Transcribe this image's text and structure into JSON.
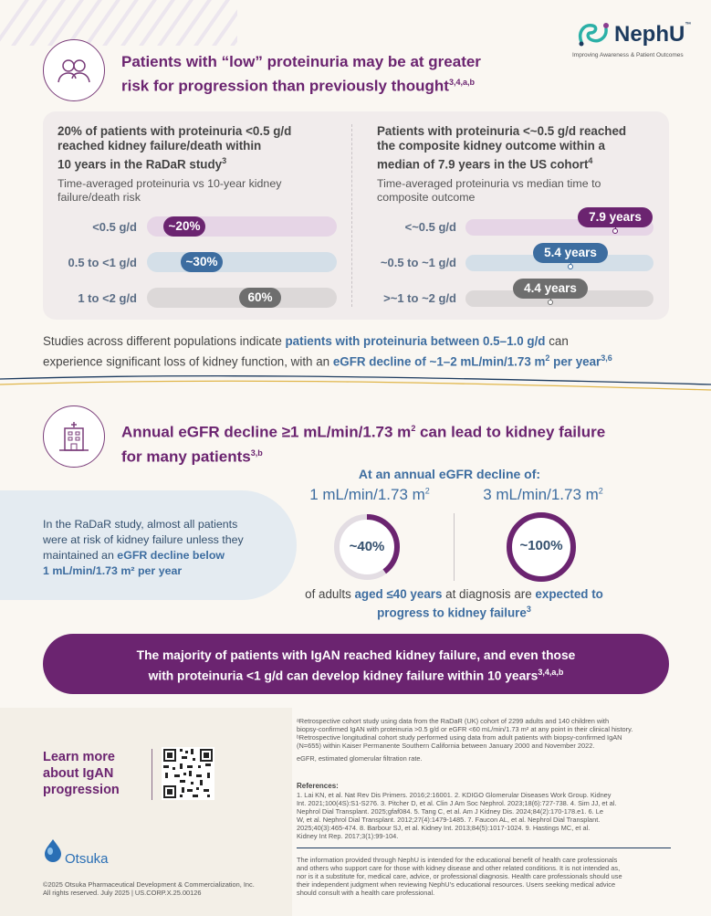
{
  "brand": {
    "name": "NephU",
    "tm": "™",
    "tagline": "Improving Awareness & Patient Outcomes",
    "colors": {
      "purple": "#6b2470",
      "blue": "#3d6da0",
      "navy": "#1c3a5e",
      "teal": "#2bb0a7"
    }
  },
  "section1": {
    "title_line1": "Patients with “low” proteinuria may be at greater",
    "title_line2": "risk for progression than previously thought",
    "title_sup": "3,4,a,b",
    "left": {
      "title_l1": "20% of patients with proteinuria <0.5 g/d",
      "title_l2": "reached kidney failure/death within",
      "title_l3": "10 years in the RaDaR study",
      "title_sup": "3",
      "sub_l1": "Time-averaged proteinuria vs 10-year kidney",
      "sub_l2": "failure/death risk",
      "rows": [
        {
          "label": "<0.5 g/d",
          "value_label": "~20%",
          "value": 20
        },
        {
          "label": "0.5 to <1 g/d",
          "value_label": "~30%",
          "value": 30
        },
        {
          "label": "1 to <2 g/d",
          "value_label": "60%",
          "value": 60
        }
      ]
    },
    "right": {
      "title_l1": "Patients with proteinuria <~0.5 g/d reached",
      "title_l2": "the composite kidney outcome within a",
      "title_l3": "median of 7.9 years in the US cohort",
      "title_sup": "4",
      "sub_l1": "Time-averaged proteinuria vs median time to",
      "sub_l2": "composite outcome",
      "rows": [
        {
          "label": "<~0.5 g/d",
          "value_label": "7.9 years",
          "value": 7.9
        },
        {
          "label": "~0.5 to ~1 g/d",
          "value_label": "5.4 years",
          "value": 5.4
        },
        {
          "label": ">~1 to ~2 g/d",
          "value_label": "4.4 years",
          "value": 4.4
        }
      ]
    },
    "studies_p1": "Studies across different populations indicate ",
    "studies_b1": "patients with proteinuria between 0.5–1.0 g/d",
    "studies_p2": " can",
    "studies_p3": "experience significant loss of kidney function, with an ",
    "studies_b2": "eGFR decline of ~1–2 mL/min/1.73 m",
    "studies_b2_sup2": "2",
    "studies_b3": " per year",
    "studies_sup": "3,6"
  },
  "section2": {
    "title_line1_a": "Annual eGFR decline ≥1 mL/min/1.73 m",
    "title_line1_sup": "2",
    "title_line1_b": " can lead to kidney failure",
    "title_line2": "for many patients",
    "title_sup": "3,b",
    "radar_l1": "In the RaDaR study, almost all patients",
    "radar_l2": "were at risk of kidney failure unless they",
    "radar_l3a": "maintained an ",
    "radar_l3b": "eGFR decline below",
    "radar_l4": "1 mL/min/1.73 m² per year",
    "heading": "At an annual eGFR decline of:",
    "rings": [
      {
        "rate": "1 mL/min/1.73 m",
        "rate_sup": "2",
        "label": "~40%",
        "value": 40
      },
      {
        "rate": "3 mL/min/1.73 m",
        "rate_sup": "2",
        "label": "~100%",
        "value": 100
      }
    ],
    "caption_a": "of adults ",
    "caption_b": "aged ≤40 years",
    "caption_c": " at diagnosis are ",
    "caption_d": "expected to",
    "caption_e": "progress to kidney failure",
    "caption_sup": "3"
  },
  "banner": {
    "line1": "The majority of patients with IgAN reached kidney failure, and even those",
    "line2": "with proteinuria <1 g/d can develop kidney failure within 10 years",
    "sup": "3,4,a,b"
  },
  "footer": {
    "learn_l1": "Learn more",
    "learn_l2": "about IgAN",
    "learn_l3": "progression",
    "company": "Otsuka",
    "copyright_l1": "©2025 Otsuka Pharmaceutical Development & Commercialization, Inc.",
    "copyright_l2": "All rights reserved. July 2025 | US.CORP.X.25.00126",
    "note_a_l1": "ᵃRetrospective cohort study using data from the RaDaR (UK) cohort of 2299 adults and 140 children with",
    "note_a_l2": "biopsy-confirmed IgAN with proteinuria >0.5 g/d or eGFR <60 mL/min/1.73 m² at any point in their clinical history.",
    "note_b_l1": "ᵇRetrospective longitudinal cohort study performed using data from adult patients with biopsy-confirmed IgAN",
    "note_b_l2": "(N=655) within Kaiser Permanente Southern California between January 2000 and November 2022.",
    "abbrev": "eGFR, estimated glomerular filtration rate.",
    "refs_heading": "References:",
    "refs_l1": "1. Lai KN, et al. Nat Rev Dis Primers. 2016;2:16001. 2. KDIGO Glomerular Diseases Work Group. Kidney",
    "refs_l2": "Int. 2021;100(4S):S1-S276. 3. Pitcher D, et al. Clin J Am Soc Nephrol. 2023;18(6):727-738. 4. Sim JJ, et al.",
    "refs_l3": "Nephrol Dial Transplant. 2025;gfaf084. 5. Tang C, et al. Am J Kidney Dis. 2024;84(2):170-178.e1. 6. Le",
    "refs_l4": "W, et al. Nephrol Dial Transplant. 2012;27(4):1479-1485. 7. Faucon AL, et al. Nephrol Dial Transplant.",
    "refs_l5": "2025;40(3):465-474. 8. Barbour SJ, et al. Kidney Int. 2013;84(5):1017-1024. 9. Hastings MC, et al.",
    "refs_l6": "Kidney Int Rep. 2017;3(1):99-104.",
    "disc_l1": "The information provided through NephU is intended for the educational benefit of health care professionals",
    "disc_l2": "and others who support care for those with kidney disease and other related conditions. It is not intended as,",
    "disc_l3": "nor is it a substitute for, medical care, advice, or professional diagnosis. Health care professionals should use",
    "disc_l4": "their independent judgment when reviewing NephU’s educational resources. Users seeking medical advice",
    "disc_l5": "should consult with a health care professional."
  }
}
